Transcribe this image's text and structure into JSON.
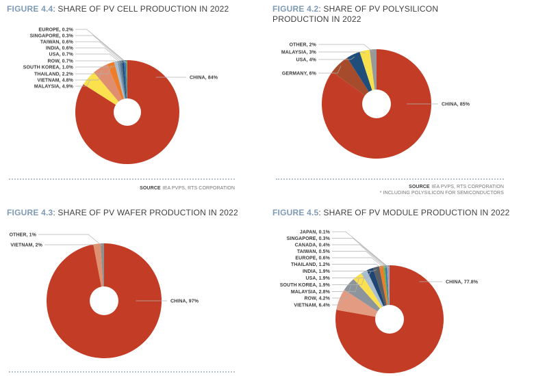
{
  "chart_data": [
    {
      "id": "pv-cell",
      "type": "pie",
      "donut": true,
      "legend_position": "none",
      "figure_label": "FIGURE 4.4",
      "title": ": SHARE OF PV CELL PRODUCTION IN 2022",
      "slices": [
        {
          "name": "CHINA",
          "display": "CHINA, 84%",
          "value": 84,
          "color": "#c33d26"
        },
        {
          "name": "MALAYSIA",
          "display": "MALAYSIA, 4.9%",
          "value": 4.9,
          "color": "#fbe14d"
        },
        {
          "name": "VIETNAM",
          "display": "VIETNAM, 4.8%",
          "value": 4.8,
          "color": "#df8f6f"
        },
        {
          "name": "THAILAND",
          "display": "THAILAND, 2.2%",
          "value": 2.2,
          "color": "#ee7c28"
        },
        {
          "name": "SOUTH KOREA",
          "display": "SOUTH KOREA, 1.0%",
          "value": 1.0,
          "color": "#a9bfd1"
        },
        {
          "name": "ROW",
          "display": "ROW, 0.7%",
          "value": 0.7,
          "color": "#8099ab"
        },
        {
          "name": "USA",
          "display": "USA, 0.7%",
          "value": 0.7,
          "color": "#54778f"
        },
        {
          "name": "INDIA",
          "display": "INDIA, 0.6%",
          "value": 0.6,
          "color": "#1f4573"
        },
        {
          "name": "TAIWAN",
          "display": "TAIWAN, 0.6%",
          "value": 0.6,
          "color": "#2e74b5"
        },
        {
          "name": "SINGAPORE",
          "display": "SINGAPORE, 0.3%",
          "value": 0.3,
          "color": "#7f7f7f"
        },
        {
          "name": "EUROPE",
          "display": "EUROPE, 0.2%",
          "value": 0.2,
          "color": "#6fae46"
        }
      ],
      "source": {
        "prefix": "SOURCE",
        "text": "IEA PVPS, RTS CORPORATION"
      }
    },
    {
      "id": "pv-polysilicon",
      "type": "pie",
      "donut": true,
      "legend_position": "none",
      "figure_label": "FIGURE 4.2",
      "title": ": SHARE OF PV POLYSILICON PRODUCTION IN 2022",
      "slices": [
        {
          "name": "CHINA",
          "display": "CHINA, 85%",
          "value": 85,
          "color": "#c33d26"
        },
        {
          "name": "GERMANY",
          "display": "GERMANY, 6%",
          "value": 6,
          "color": "#a64c2c"
        },
        {
          "name": "USA",
          "display": "USA, 4%",
          "value": 4,
          "color": "#1f4e7a"
        },
        {
          "name": "MALAYSIA",
          "display": "MALAYSIA, 3%",
          "value": 3,
          "color": "#f7e04e"
        },
        {
          "name": "OTHER",
          "display": "OTHER, 2%",
          "value": 2,
          "color": "#999999"
        }
      ],
      "source": {
        "prefix": "SOURCE",
        "text": "IEA PVPS, RTS CORPORATION",
        "note": "* INCLUDING POLYSILICON FOR SEMICONDUCTORS"
      }
    },
    {
      "id": "pv-wafer",
      "type": "pie",
      "donut": true,
      "legend_position": "none",
      "figure_label": "FIGURE 4.3",
      "title": ": SHARE OF PV WAFER PRODUCTION IN 2022",
      "slices": [
        {
          "name": "CHINA",
          "display": "CHINA, 97%",
          "value": 97,
          "color": "#c33d26"
        },
        {
          "name": "VIETNAM",
          "display": "VIETNAM, 2%",
          "value": 2,
          "color": "#df9070"
        },
        {
          "name": "OTHER",
          "display": "OTHER, 1%",
          "value": 1,
          "color": "#8f8f8f"
        }
      ],
      "source": null
    },
    {
      "id": "pv-module",
      "type": "pie",
      "donut": true,
      "legend_position": "none",
      "figure_label": "FIGURE 4.5",
      "title": ": SHARE OF PV MODULE PRODUCTION IN 2022",
      "slices": [
        {
          "name": "CHINA",
          "display": "CHINA, 77.8%",
          "value": 77.8,
          "color": "#c33d26"
        },
        {
          "name": "VIETNAM",
          "display": "VIETNAM, 6.4%",
          "value": 6.4,
          "color": "#e39b81"
        },
        {
          "name": "ROW",
          "display": "ROW, 4.2%",
          "value": 4.2,
          "color": "#8d949b"
        },
        {
          "name": "MALAYSIA",
          "display": "MALAYSIA, 2.8%",
          "value": 2.8,
          "color": "#fbe14d"
        },
        {
          "name": "SOUTH KOREA",
          "display": "SOUTH KOREA, 1.9%",
          "value": 1.9,
          "color": "#a9bfd1"
        },
        {
          "name": "USA",
          "display": "USA, 1.9%",
          "value": 1.9,
          "color": "#1f4573"
        },
        {
          "name": "INDIA",
          "display": "INDIA, 1.9%",
          "value": 1.9,
          "color": "#575e66"
        },
        {
          "name": "THAILAND",
          "display": "THAILAND, 1.2%",
          "value": 1.2,
          "color": "#ee7c28"
        },
        {
          "name": "EUROPE",
          "display": "EUROPE, 0.6%",
          "value": 0.6,
          "color": "#6fae46"
        },
        {
          "name": "TAIWAN",
          "display": "TAIWAN, 0.5%",
          "value": 0.5,
          "color": "#2e74b5"
        },
        {
          "name": "CANADA",
          "display": "CANADA, 0.4%",
          "value": 0.4,
          "color": "#9ba4ac"
        },
        {
          "name": "SINGAPORE",
          "display": "SINGAPORE, 0.3%",
          "value": 0.3,
          "color": "#9382ae"
        },
        {
          "name": "JAPAN",
          "display": "JAPAN, 0.1%",
          "value": 0.1,
          "color": "#cdd2d6"
        }
      ],
      "source": null
    }
  ]
}
